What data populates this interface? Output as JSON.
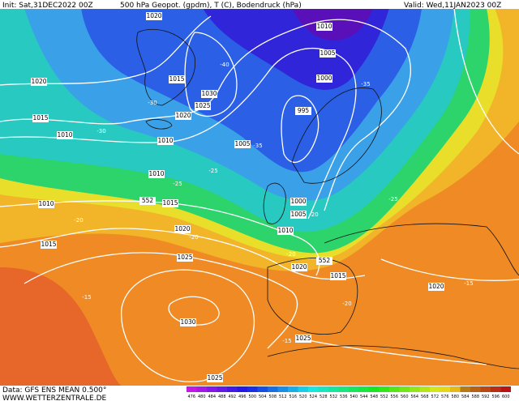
{
  "header": {
    "init": "Init: Sat,31DEC2022 00Z",
    "title": "500 hPa Geopot. (gpdm), T (C), Bodendruck (hPa)",
    "valid": "Valid: Wed,11JAN2023 00Z"
  },
  "footer": {
    "data": "Data: GFS ENS MEAN 0.500°",
    "site": "WWW.WETTERZENTRALE.DE"
  },
  "scale": [
    476,
    480,
    484,
    488,
    492,
    496,
    500,
    504,
    508,
    512,
    516,
    520,
    524,
    528,
    532,
    536,
    540,
    544,
    548,
    552,
    556,
    560,
    564,
    568,
    572,
    576,
    580,
    584,
    588,
    592,
    596,
    600
  ],
  "isobar_labels": [
    "1020",
    "1010",
    "1005",
    "1015",
    "1030",
    "1025",
    "1020",
    "1000",
    "995",
    "1020",
    "1015",
    "1010",
    "1010",
    "1005",
    "1010",
    "1015",
    "1010",
    "1000",
    "1005",
    "1010",
    "1015",
    "1020",
    "1025",
    "1020",
    "1015",
    "1020",
    "1030",
    "1025",
    "1025",
    "552",
    "552"
  ],
  "temperature_labels": [
    "-40",
    "-35",
    "-30",
    "-35",
    "-30",
    "-25",
    "-25",
    "-25",
    "-20",
    "-20",
    "-20",
    "-20",
    "-15",
    "-20",
    "-15",
    "-15"
  ]
}
